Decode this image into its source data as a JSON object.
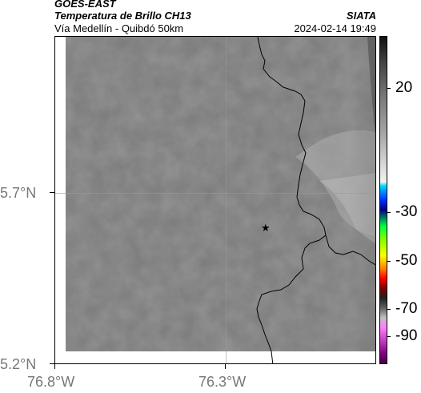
{
  "header": {
    "satellite": "GOES-EAST",
    "product": "Temperatura de Brillo CH13",
    "region": "Vía Medellín - Quibdó 50km",
    "org": "SIATA",
    "timestamp": "2024-02-14 19:49"
  },
  "map": {
    "lat_labels": [
      "5.7°N",
      "5.2°N"
    ],
    "lon_labels": [
      "76.8°W",
      "76.3°W"
    ],
    "marker_icon": "star-icon",
    "marker_glyph": "★",
    "land_color": "#7c7c7c",
    "border_color": "#000000"
  },
  "colorbar": {
    "labels": [
      "20",
      "-30",
      "-50",
      "-70",
      "-90"
    ]
  }
}
